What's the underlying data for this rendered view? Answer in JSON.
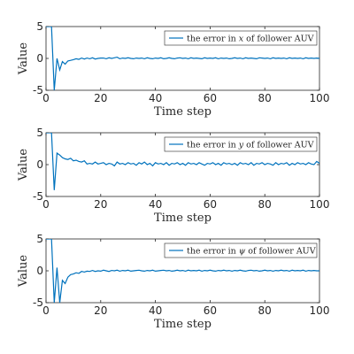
{
  "colors": {
    "series": "#0072BD",
    "axis": "#262626"
  },
  "chart_data": [
    {
      "type": "line",
      "xlabel": "Time step",
      "ylabel": "Value",
      "xlim": [
        0,
        100
      ],
      "ylim": [
        -5,
        5
      ],
      "xticks": [
        "0",
        "20",
        "40",
        "60",
        "80",
        "100"
      ],
      "yticks": [
        "-5",
        "0",
        "5"
      ],
      "legend_position": "top-right",
      "legend": {
        "prefix": "the error in ",
        "var": "x",
        "suffix": " of follower AUV"
      },
      "series": [
        {
          "name": "the error in x of follower AUV",
          "x": [
            0,
            1,
            2,
            3,
            4,
            5,
            6,
            7,
            8,
            9,
            10,
            11,
            12,
            13,
            14,
            15,
            16,
            17,
            18,
            19,
            20,
            21,
            22,
            23,
            24,
            25,
            26,
            27,
            28,
            29,
            30,
            31,
            32,
            33,
            34,
            35,
            36,
            37,
            38,
            39,
            40,
            41,
            42,
            43,
            44,
            45,
            46,
            47,
            48,
            49,
            50,
            51,
            52,
            53,
            54,
            55,
            56,
            57,
            58,
            59,
            60,
            61,
            62,
            63,
            64,
            65,
            66,
            67,
            68,
            69,
            70,
            71,
            72,
            73,
            74,
            75,
            76,
            77,
            78,
            79,
            80,
            81,
            82,
            83,
            84,
            85,
            86,
            87,
            88,
            89,
            90,
            91,
            92,
            93,
            94,
            95,
            96,
            97,
            98,
            99,
            100
          ],
          "y": [
            5,
            5,
            5,
            -5,
            0,
            -1.8,
            -0.5,
            -0.9,
            -0.4,
            -0.3,
            -0.2,
            -0.05,
            -0.15,
            0.05,
            -0.1,
            0.05,
            -0.05,
            0.1,
            -0.1,
            0,
            0.05,
            0.05,
            -0.05,
            0.1,
            0,
            0.1,
            0.2,
            -0.05,
            0.05,
            0,
            0.1,
            0,
            -0.05,
            0.05,
            0,
            0.05,
            -0.05,
            0.1,
            0,
            -0.05,
            0.05,
            0,
            0.1,
            -0.05,
            0,
            0.1,
            0,
            -0.05,
            0.05,
            0.1,
            0,
            0.05,
            -0.05,
            0.1,
            0,
            0.05,
            0,
            -0.05,
            0.1,
            0,
            0.05,
            0,
            0.1,
            -0.05,
            0.05,
            0,
            0.05,
            -0.05,
            0,
            0.1,
            0,
            0.05,
            -0.05,
            0.1,
            0,
            0.05,
            0,
            -0.05,
            0.1,
            0.05,
            0,
            0.05,
            -0.05,
            0.1,
            0,
            0.05,
            0,
            0.05,
            -0.05,
            0.1,
            0,
            0.05,
            0,
            0.05,
            -0.05,
            0.1,
            0,
            0.05,
            0,
            0.05,
            0
          ]
        }
      ]
    },
    {
      "type": "line",
      "xlabel": "Time step",
      "ylabel": "Value",
      "xlim": [
        0,
        100
      ],
      "ylim": [
        -5,
        5
      ],
      "xticks": [
        "0",
        "20",
        "40",
        "60",
        "80",
        "100"
      ],
      "yticks": [
        "-5",
        "0",
        "5"
      ],
      "legend_position": "top-right",
      "legend": {
        "prefix": "the error in ",
        "var": "y",
        "suffix": " of follower AUV"
      },
      "series": [
        {
          "name": "the error in y of follower AUV",
          "x": [
            0,
            1,
            2,
            3,
            4,
            5,
            6,
            7,
            8,
            9,
            10,
            11,
            12,
            13,
            14,
            15,
            16,
            17,
            18,
            19,
            20,
            21,
            22,
            23,
            24,
            25,
            26,
            27,
            28,
            29,
            30,
            31,
            32,
            33,
            34,
            35,
            36,
            37,
            38,
            39,
            40,
            41,
            42,
            43,
            44,
            45,
            46,
            47,
            48,
            49,
            50,
            51,
            52,
            53,
            54,
            55,
            56,
            57,
            58,
            59,
            60,
            61,
            62,
            63,
            64,
            65,
            66,
            67,
            68,
            69,
            70,
            71,
            72,
            73,
            74,
            75,
            76,
            77,
            78,
            79,
            80,
            81,
            82,
            83,
            84,
            85,
            86,
            87,
            88,
            89,
            90,
            91,
            92,
            93,
            94,
            95,
            96,
            97,
            98,
            99,
            100
          ],
          "y": [
            5,
            5,
            5,
            -4,
            1.8,
            1.5,
            1.1,
            0.9,
            0.8,
            1.0,
            0.6,
            0.7,
            0.5,
            0.4,
            0.6,
            0.1,
            0.2,
            0.1,
            0.4,
            0.1,
            0.2,
            0.3,
            0,
            0.2,
            0.1,
            -0.2,
            0.4,
            0.1,
            0.2,
            0,
            0.3,
            0.1,
            0.2,
            -0.1,
            0.3,
            0.1,
            0.4,
            0,
            0.2,
            -0.2,
            0.3,
            0.1,
            0.2,
            0,
            0.3,
            -0.1,
            0.2,
            0.1,
            0.3,
            0,
            0.2,
            -0.1,
            0.3,
            0.1,
            0.2,
            0,
            0.3,
            0.1,
            -0.1,
            0.2,
            0.1,
            0.3,
            0,
            0.2,
            -0.1,
            0.3,
            0.1,
            0.2,
            0,
            0.2,
            -0.1,
            0.3,
            0.1,
            0.2,
            0,
            0.3,
            -0.1,
            0.2,
            0.1,
            0.3,
            0,
            0.2,
            0.1,
            -0.1,
            0.3,
            0,
            0.2,
            0.1,
            0.3,
            -0.1,
            0.2,
            0,
            0.3,
            0.1,
            0.2,
            0,
            0.3,
            0.1,
            0,
            0.5,
            0.2
          ]
        }
      ]
    },
    {
      "type": "line",
      "xlabel": "Time step",
      "ylabel": "Value",
      "xlim": [
        0,
        100
      ],
      "ylim": [
        -5,
        5
      ],
      "xticks": [
        "0",
        "20",
        "40",
        "60",
        "80",
        "100"
      ],
      "yticks": [
        "-5",
        "0",
        "5"
      ],
      "legend_position": "top-right",
      "legend": {
        "prefix": "the error in ",
        "var": "ψ",
        "suffix": " of follower AUV"
      },
      "series": [
        {
          "name": "the error in ψ of follower AUV",
          "x": [
            0,
            1,
            2,
            3,
            4,
            5,
            6,
            7,
            8,
            9,
            10,
            11,
            12,
            13,
            14,
            15,
            16,
            17,
            18,
            19,
            20,
            21,
            22,
            23,
            24,
            25,
            26,
            27,
            28,
            29,
            30,
            31,
            32,
            33,
            34,
            35,
            36,
            37,
            38,
            39,
            40,
            41,
            42,
            43,
            44,
            45,
            46,
            47,
            48,
            49,
            50,
            51,
            52,
            53,
            54,
            55,
            56,
            57,
            58,
            59,
            60,
            61,
            62,
            63,
            64,
            65,
            66,
            67,
            68,
            69,
            70,
            71,
            72,
            73,
            74,
            75,
            76,
            77,
            78,
            79,
            80,
            81,
            82,
            83,
            84,
            85,
            86,
            87,
            88,
            89,
            90,
            91,
            92,
            93,
            94,
            95,
            96,
            97,
            98,
            99,
            100
          ],
          "y": [
            5,
            5,
            5,
            -5,
            0.5,
            -5,
            -1.5,
            -2.0,
            -1.0,
            -0.6,
            -0.5,
            -0.3,
            -0.4,
            -0.1,
            -0.2,
            -0.05,
            -0.1,
            0.05,
            -0.1,
            0,
            -0.05,
            0.1,
            0,
            -0.1,
            0.05,
            0,
            0.1,
            -0.05,
            0.05,
            0,
            0.1,
            -0.05,
            0,
            0.05,
            0.1,
            0,
            -0.05,
            0.05,
            0,
            0.1,
            -0.05,
            0,
            0.05,
            0.1,
            0,
            0.05,
            -0.05,
            0,
            0.1,
            0,
            0.05,
            -0.05,
            0.1,
            0,
            0.05,
            0,
            0.1,
            -0.05,
            0.05,
            0,
            0.1,
            0,
            -0.05,
            0.05,
            0,
            0.1,
            0,
            0.05,
            -0.05,
            0.05,
            0,
            0.1,
            0,
            -0.05,
            0.05,
            0.1,
            0,
            0.05,
            -0.05,
            0,
            0.1,
            0,
            0.05,
            -0.05,
            0.05,
            0,
            0.1,
            0,
            0.05,
            -0.05,
            0.1,
            0,
            0.05,
            0,
            0.1,
            -0.05,
            0.05,
            0,
            0.05,
            0,
            0
          ]
        }
      ]
    }
  ]
}
